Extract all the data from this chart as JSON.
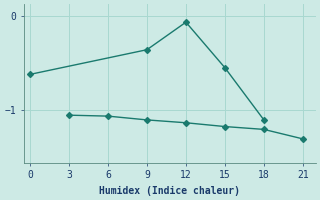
{
  "xlabel": "Humidex (Indice chaleur)",
  "background_color": "#cdeae5",
  "line_color": "#1a7a6e",
  "grid_color": "#a8d8d0",
  "xlim": [
    -0.5,
    22
  ],
  "ylim": [
    -1.55,
    0.12
  ],
  "xticks": [
    0,
    3,
    6,
    9,
    12,
    15,
    18,
    21
  ],
  "yticks": [
    -1,
    0
  ],
  "line1_x": [
    0,
    9,
    12,
    15,
    18
  ],
  "line1_y": [
    -0.62,
    -0.36,
    -0.07,
    -0.55,
    -1.1
  ],
  "line2_x": [
    3,
    6,
    9,
    12,
    15,
    18,
    21
  ],
  "line2_y": [
    -1.05,
    -1.06,
    -1.1,
    -1.13,
    -1.17,
    -1.2,
    -1.3
  ],
  "markersize": 3,
  "linewidth": 1.0
}
